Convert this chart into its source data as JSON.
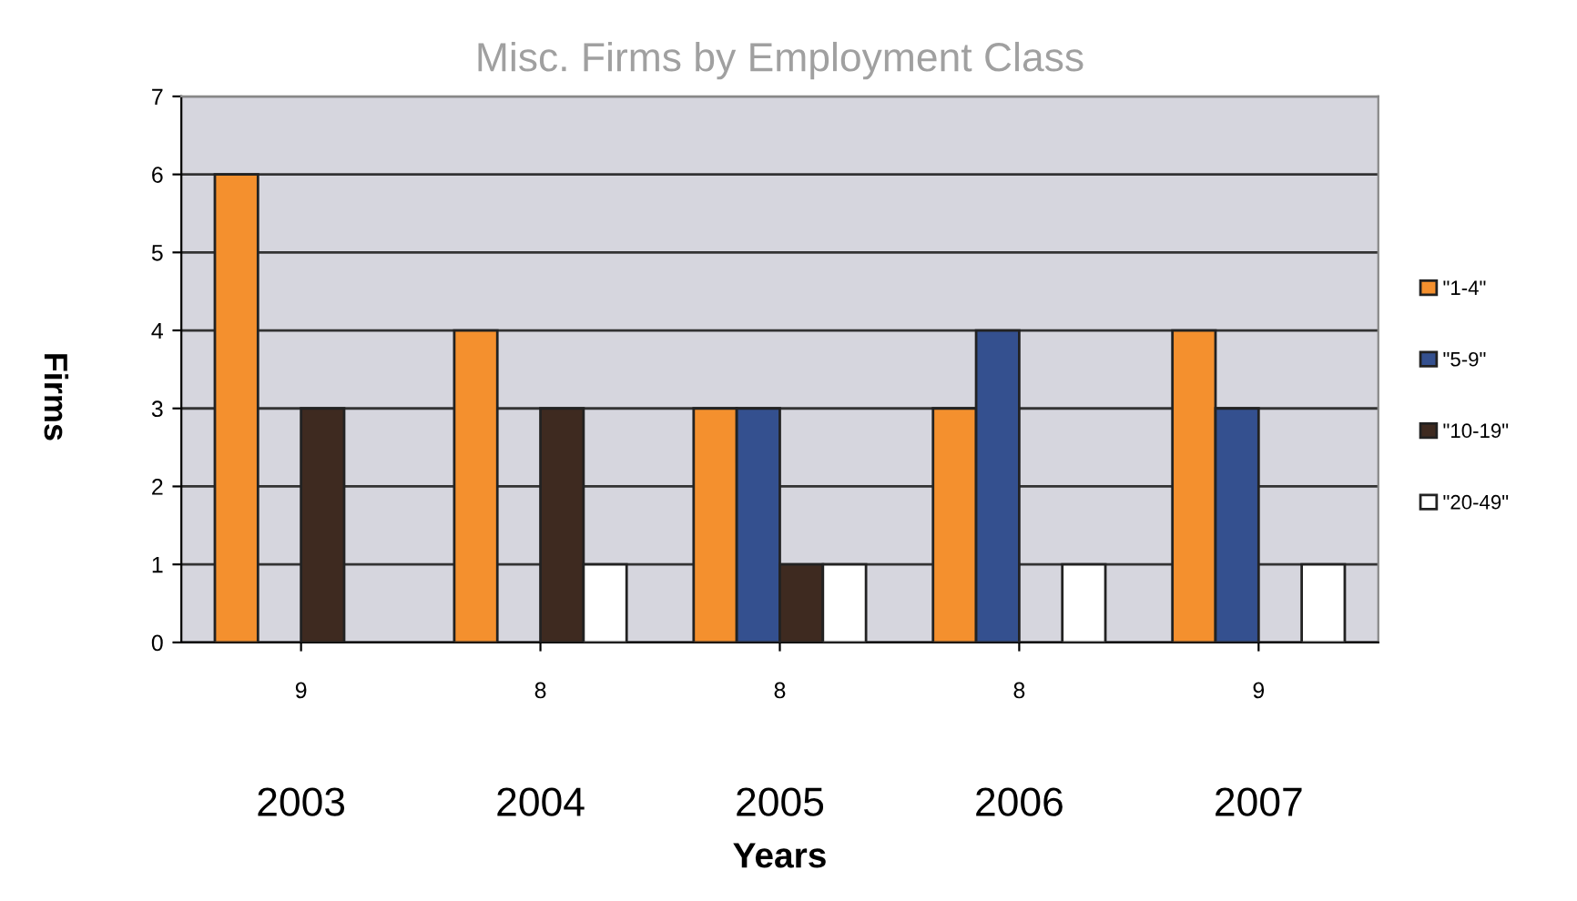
{
  "chart_data": {
    "type": "bar",
    "title": "Misc. Firms by Employment Class",
    "xlabel": "Years",
    "ylabel": "Firms",
    "categories": [
      "9",
      "8",
      "8",
      "8",
      "9"
    ],
    "series": [
      {
        "name": "\"1-4\"",
        "color": "#f4902e",
        "values": [
          6,
          4,
          3,
          3,
          4
        ]
      },
      {
        "name": "\"5-9\"",
        "color": "#34508f",
        "values": [
          null,
          null,
          3,
          4,
          3
        ]
      },
      {
        "name": "\"10-19\"",
        "color": "#3e2a20",
        "values": [
          3,
          3,
          1,
          null,
          null
        ]
      },
      {
        "name": "\"20-49\"",
        "color": "#ffffff",
        "values": [
          null,
          1,
          1,
          1,
          1
        ]
      }
    ],
    "annotations": [
      "2003",
      "2004",
      "2005",
      "2006",
      "2007"
    ],
    "ylim": [
      0,
      7
    ],
    "yticks": [
      0,
      1,
      2,
      3,
      4,
      5,
      6,
      7
    ],
    "grid": "y",
    "legend": "right"
  }
}
